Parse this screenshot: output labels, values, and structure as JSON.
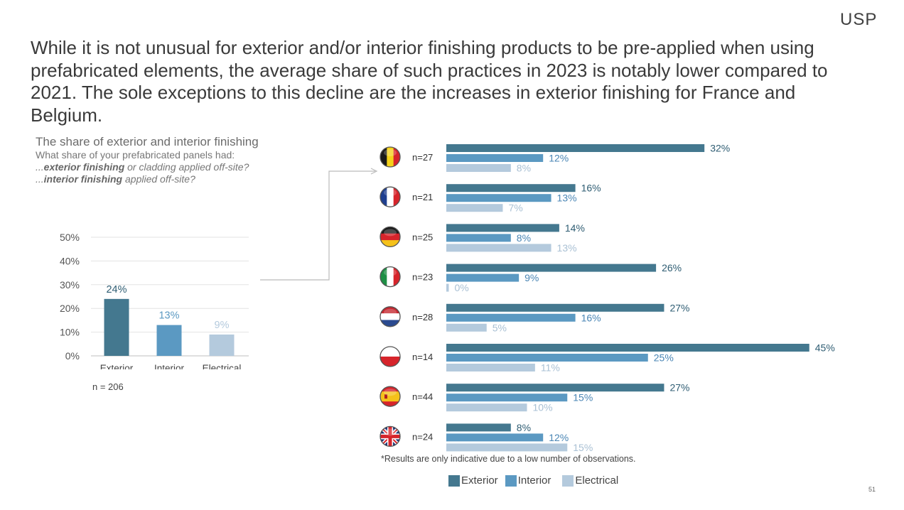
{
  "logo": "USP",
  "headline": "While it is not unusual for exterior and/or interior finishing products to be pre-applied when using prefabricated elements, the average share of such practices in 2023 is notably lower compared to 2021. The sole exceptions to this decline are the increases in exterior finishing for France and Belgium.",
  "question": {
    "title": "The share of exterior and interior finishing",
    "line1": "What share of your prefabricated panels had:",
    "line2_prefix": "...",
    "line2_bold": "exterior finishing",
    "line2_rest": " or cladding applied off-site?",
    "line3_prefix": "...",
    "line3_bold": "interior finishing",
    "line3_rest": " applied off-site?"
  },
  "n_total": "n = 206",
  "footnote": "*Results are only indicative due to a low number of observations.",
  "page_number": "51",
  "colors": {
    "exterior": "#44788f",
    "interior": "#5b99c2",
    "electrical": "#b4cadd"
  },
  "legend": [
    {
      "label": "Exterior",
      "color": "#44788f"
    },
    {
      "label": "Interior",
      "color": "#5b99c2"
    },
    {
      "label": "Electrical",
      "color": "#b4cadd"
    }
  ],
  "chart_data": [
    {
      "type": "bar",
      "categories": [
        "Exterior",
        "Interior",
        "Electrical"
      ],
      "values": [
        24,
        13,
        9
      ],
      "value_labels": [
        "24%",
        "13%",
        "9%"
      ],
      "colors": [
        "#44788f",
        "#5b99c2",
        "#b4cadd"
      ],
      "ylim": [
        0,
        50
      ],
      "y_ticks": [
        0,
        10,
        20,
        30,
        40,
        50
      ],
      "y_tick_labels": [
        "0%",
        "10%",
        "20%",
        "30%",
        "40%",
        "50%"
      ],
      "grid": true
    },
    {
      "type": "bar",
      "orientation": "horizontal",
      "categories": [
        "Belgium",
        "France",
        "Germany",
        "Italy",
        "Netherlands",
        "Poland",
        "Spain",
        "United Kingdom"
      ],
      "sample_sizes": [
        "n=27",
        "n=21",
        "n=25",
        "n=23",
        "n=28",
        "n=14",
        "n=44",
        "n=24"
      ],
      "series": [
        {
          "name": "Exterior",
          "values": [
            32,
            16,
            14,
            26,
            27,
            45,
            27,
            8
          ],
          "color": "#44788f"
        },
        {
          "name": "Interior",
          "values": [
            12,
            13,
            8,
            9,
            16,
            25,
            15,
            12
          ],
          "color": "#5b99c2"
        },
        {
          "name": "Electrical",
          "values": [
            8,
            7,
            13,
            0,
            5,
            11,
            10,
            15
          ],
          "color": "#b4cadd"
        }
      ],
      "label_suffix": "%",
      "legend": "bottom"
    }
  ]
}
